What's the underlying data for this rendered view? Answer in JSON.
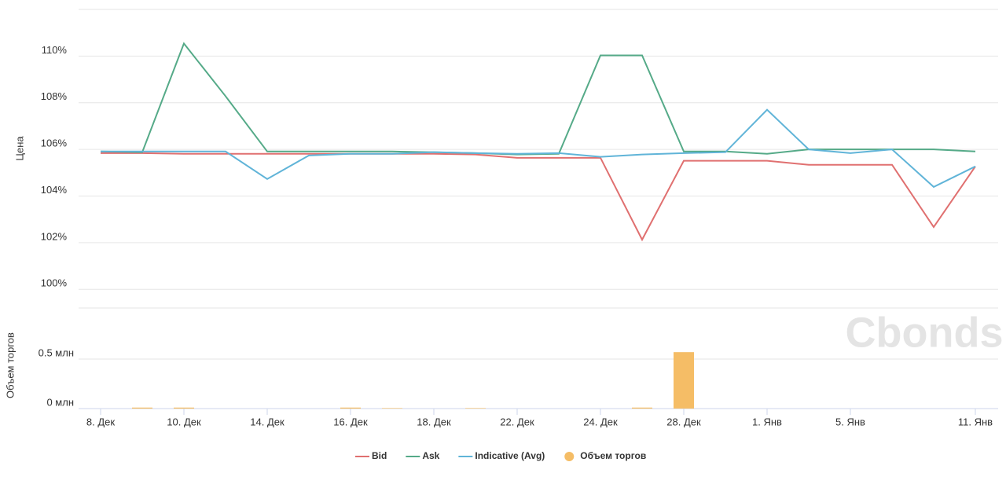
{
  "chart_data": {
    "type": "line",
    "watermark": "Cbonds",
    "ylabel": "Цена",
    "y2label": "Объем торгов",
    "categories": [
      "8. Дек",
      null,
      "10. Дек",
      null,
      "14. Дек",
      null,
      "16. Дек",
      null,
      "18. Дек",
      null,
      "22. Дек",
      null,
      "24. Дек",
      null,
      "28. Дек",
      null,
      "1. Янв",
      null,
      "5. Янв",
      null,
      null,
      "11. Янв"
    ],
    "ylim": [
      99.2,
      112
    ],
    "yticks": [
      {
        "value": 100,
        "label": "100%"
      },
      {
        "value": 102,
        "label": "102%"
      },
      {
        "value": 104,
        "label": "104%"
      },
      {
        "value": 106,
        "label": "106%"
      },
      {
        "value": 108,
        "label": "108%"
      },
      {
        "value": 110,
        "label": "110%"
      }
    ],
    "y2lim": [
      0,
      1
    ],
    "y2ticks": [
      {
        "value": 0,
        "label": "0 млн"
      },
      {
        "value": 0.5,
        "label": "0.5 млн"
      }
    ],
    "grid": true,
    "legend": "bottom",
    "series": [
      {
        "name": "Bid",
        "color": "#e07070",
        "values": [
          105.84,
          105.84,
          105.81,
          105.81,
          105.81,
          105.81,
          105.81,
          105.81,
          105.81,
          105.78,
          105.64,
          105.64,
          105.64,
          102.13,
          105.51,
          105.51,
          105.51,
          105.34,
          105.34,
          105.34,
          102.67,
          105.27
        ]
      },
      {
        "name": "Ask",
        "color": "#55aa88",
        "values": [
          105.91,
          105.88,
          110.54,
          108.28,
          105.91,
          105.91,
          105.91,
          105.91,
          105.88,
          105.84,
          105.78,
          105.81,
          110.03,
          110.03,
          105.91,
          105.91,
          105.81,
          106,
          106,
          106,
          106,
          105.91
        ]
      },
      {
        "name": "Indicative (Avg)",
        "color": "#60b4d8",
        "values": [
          105.91,
          105.91,
          105.91,
          105.91,
          104.73,
          105.74,
          105.81,
          105.81,
          105.88,
          105.84,
          105.81,
          105.84,
          105.68,
          105.78,
          105.84,
          105.88,
          107.7,
          106,
          105.84,
          106,
          104.39,
          105.27
        ]
      },
      {
        "name": "Объем торгов",
        "type": "bar",
        "axis": "y2",
        "color": "#f5bd66",
        "values": [
          0,
          0.01,
          0.01,
          0,
          0,
          0,
          0.01,
          0.005,
          0,
          0.005,
          0,
          0,
          0,
          0.01,
          0.57,
          0,
          0,
          0,
          0,
          0,
          0,
          0
        ]
      }
    ]
  }
}
